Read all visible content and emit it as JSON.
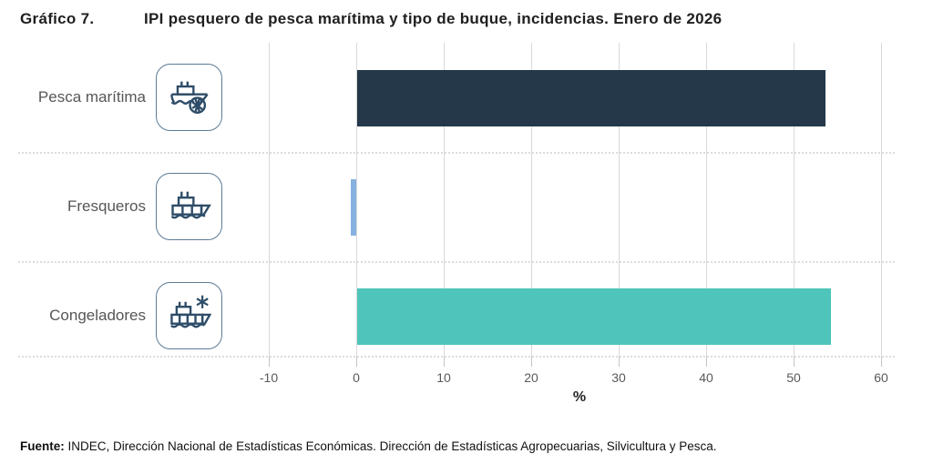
{
  "header": {
    "label": "Gráfico 7.",
    "title": "IPI pesquero de pesca marítima y tipo de buque, incidencias. Enero de 2026"
  },
  "chart_data": {
    "type": "bar",
    "orientation": "horizontal",
    "title": "IPI pesquero de pesca marítima y tipo de buque, incidencias. Enero de 2026",
    "categories": [
      "Pesca marítima",
      "Fresqueros",
      "Congeladores"
    ],
    "values": [
      53.6,
      -0.6,
      54.2
    ],
    "bar_colors": [
      "#25384a",
      "#85b2e0",
      "#4ec4ba"
    ],
    "icons": [
      "fishing-ship-net-icon",
      "fresh-ship-icon",
      "freezer-ship-snowflake-icon"
    ],
    "xlabel": "%",
    "x_ticks": [
      -10,
      0,
      10,
      20,
      30,
      40,
      50,
      60
    ],
    "xlim": [
      -10,
      60
    ],
    "grid": "vertical solid gridlines per tick; dotted horizontal row separators",
    "legend": "none"
  },
  "footer": {
    "prefix": "Fuente:",
    "text": " INDEC, Dirección Nacional de Estadísticas Económicas. Dirección de Estadísticas Agropecuarias, Silvicultura y Pesca."
  },
  "colors": {
    "bar_pesca_maritima": "#25384a",
    "bar_fresqueros": "#85b2e0",
    "bar_congeladores": "#4ec4ba",
    "gridline": "#d9d9d9",
    "icon_stroke": "#2e4d68",
    "icon_border": "#5b7b96",
    "label_gray": "#565656",
    "tick_gray": "#595959"
  }
}
